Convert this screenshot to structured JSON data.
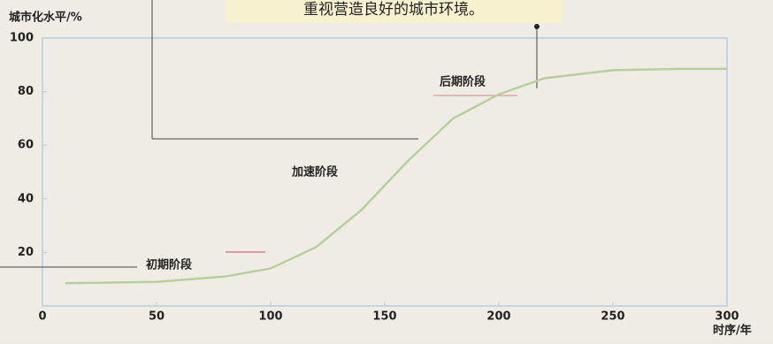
{
  "top_text": "重视营造良好的城市环境。",
  "chart_data": {
    "type": "line",
    "y_label": "城市化水平/%",
    "x_label": "时序/年",
    "x": [
      10,
      50,
      80,
      100,
      120,
      140,
      150,
      160,
      180,
      200,
      220,
      250,
      280,
      300
    ],
    "values": [
      8.5,
      9,
      11,
      14,
      22,
      36,
      45,
      54,
      70,
      79,
      85,
      88,
      88.5,
      88.5
    ],
    "color": "#b9cf9a",
    "xlim": [
      0,
      300
    ],
    "xticks": [
      0,
      50,
      100,
      150,
      200,
      250,
      300
    ],
    "ylim": [
      0,
      100
    ],
    "yticks": [
      20,
      40,
      60,
      80,
      100
    ],
    "annotations": [
      "初期阶段",
      "加速阶段",
      "后期阶段"
    ]
  }
}
